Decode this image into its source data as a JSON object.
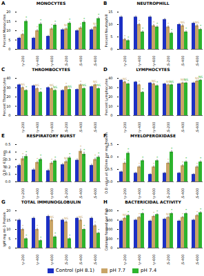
{
  "chart_data": [
    {
      "type": "bar",
      "panel": "A",
      "title": "MONOCYTES",
      "ylabel": "Percent Monocytes",
      "categories": [
        "Fry-200",
        "Fry-400",
        "Fry-600",
        "FLS-200",
        "FLS-400",
        "FLS-600"
      ],
      "series": [
        {
          "name": "Control (pH 8.1)",
          "color": "#1c2fc4",
          "values": [
            6,
            6,
            7,
            10.5,
            10,
            10.5
          ],
          "errors": [
            0.6,
            0.6,
            0.6,
            0.7,
            0.7,
            0.7
          ]
        },
        {
          "name": "pH 7.7",
          "color": "#c9a467",
          "values": [
            8,
            10,
            11,
            11,
            11.5,
            12
          ],
          "errors": [
            0.6,
            0.7,
            0.7,
            0.7,
            0.7,
            0.7
          ],
          "annotations": [
            "*",
            "*",
            "*",
            "NS",
            "*",
            "NS"
          ]
        },
        {
          "name": "pH 7.4",
          "color": "#2db42d",
          "values": [
            15,
            13.5,
            13,
            14,
            14.5,
            16.5
          ],
          "errors": [
            0.8,
            0.8,
            0.8,
            0.8,
            0.8,
            0.8
          ],
          "annotations": [
            "*",
            "*",
            "*",
            "*",
            "*",
            "*"
          ]
        }
      ],
      "ylim": [
        0,
        20
      ],
      "yticks": [
        0,
        5,
        10,
        15,
        20
      ]
    },
    {
      "type": "bar",
      "panel": "B",
      "title": "NEUTROPHILL",
      "ylabel": "Percent Neutrophill",
      "categories": [
        "Fry-200",
        "Fry-400",
        "Fry-600",
        "FLS-200",
        "FLS-400",
        "FLS-600"
      ],
      "series": [
        {
          "name": "Control (pH 8.1)",
          "color": "#1c2fc4",
          "values": [
            13,
            13,
            13,
            12,
            10,
            10.5
          ],
          "errors": [
            0.5,
            0.5,
            0.5,
            0.5,
            0.5,
            0.5
          ]
        },
        {
          "name": "pH 7.7",
          "color": "#c9a467",
          "values": [
            4,
            10,
            9.5,
            9,
            9.5,
            9.5
          ],
          "errors": [
            0.5,
            0.5,
            0.5,
            0.5,
            0.5,
            0.5
          ],
          "annotations": [
            "*",
            "*",
            "*",
            "*",
            "NS",
            "NS"
          ]
        },
        {
          "name": "pH 7.4",
          "color": "#2db42d",
          "values": [
            3.5,
            7,
            9,
            6.5,
            7,
            8
          ],
          "errors": [
            0.5,
            0.5,
            0.5,
            0.5,
            0.5,
            0.5
          ],
          "annotations": [
            "*",
            "*",
            "*",
            "*",
            "*",
            "*"
          ]
        }
      ],
      "ylim": [
        0,
        15
      ],
      "yticks": [
        0,
        5,
        10,
        15
      ]
    },
    {
      "type": "bar",
      "panel": "C",
      "title": "THROMBOCYTES",
      "ylabel": "Percent Thrombocytes",
      "categories": [
        "Fry-200",
        "Fry-400",
        "Fry-600",
        "FLS-200",
        "FLS-400",
        "FLS-600"
      ],
      "series": [
        {
          "name": "Control (pH 8.1)",
          "color": "#1c2fc4",
          "values": [
            33,
            32,
            30,
            27,
            28,
            31
          ],
          "errors": [
            1,
            1,
            1,
            1,
            1,
            1
          ]
        },
        {
          "name": "pH 7.7",
          "color": "#c9a467",
          "values": [
            30,
            29,
            29,
            31,
            33,
            33
          ],
          "errors": [
            1,
            1,
            1,
            1,
            1,
            1
          ],
          "annotations": [
            "NS",
            "NS",
            "NS",
            "*",
            "*",
            "NS"
          ]
        },
        {
          "name": "pH 7.4",
          "color": "#2db42d",
          "values": [
            27,
            25,
            27,
            28,
            29,
            29
          ],
          "errors": [
            1,
            1,
            1,
            1,
            1,
            1
          ],
          "annotations": [
            "*",
            "*",
            "NS",
            "NS",
            "NS",
            "NS"
          ]
        }
      ],
      "ylim": [
        0,
        40
      ],
      "yticks": [
        0,
        10,
        20,
        30,
        40
      ]
    },
    {
      "type": "bar",
      "panel": "D",
      "title": "LYMPHOCYTES",
      "ylabel": "Percent Lymphocytes",
      "categories": [
        "Fry-200",
        "Fry-400",
        "Fry-600",
        "FLS-200",
        "FLS-400",
        "FLS-600"
      ],
      "series": [
        {
          "name": "Control (pH 8.1)",
          "color": "#1c2fc4",
          "values": [
            38,
            36,
            35,
            34,
            34,
            35
          ],
          "errors": [
            1,
            1,
            1,
            1,
            1,
            1
          ]
        },
        {
          "name": "pH 7.7",
          "color": "#c9a467",
          "values": [
            36,
            33,
            34,
            33,
            35,
            37
          ],
          "errors": [
            1,
            1,
            1,
            1,
            1,
            1
          ],
          "annotations": [
            "NS",
            "*",
            "NS",
            "NS",
            "NS",
            "NS"
          ]
        },
        {
          "name": "pH 7.4",
          "color": "#2db42d",
          "values": [
            34,
            25,
            32,
            33,
            35,
            38
          ],
          "errors": [
            1,
            1,
            1,
            1,
            1,
            1
          ],
          "annotations": [
            "*",
            "*",
            "*",
            "NS",
            "NS",
            "NS"
          ]
        }
      ],
      "ylim": [
        0,
        40
      ],
      "yticks": [
        0,
        10,
        20,
        30,
        40
      ]
    },
    {
      "type": "bar",
      "panel": "E",
      "title": "RESPIRATORY BURST",
      "ylabel": "O.D at 630 nm",
      "categories": [
        "Fry-200",
        "Fry-400",
        "Fry-600",
        "FLS-200",
        "FLS-400",
        "FLS-600"
      ],
      "series": [
        {
          "name": "Control (pH 8.1)",
          "color": "#1c2fc4",
          "values": [
            0.22,
            0.16,
            0.15,
            0.23,
            0.29,
            0.22
          ],
          "errors": [
            0.02,
            0.02,
            0.02,
            0.02,
            0.02,
            0.02
          ]
        },
        {
          "name": "pH 7.7",
          "color": "#c9a467",
          "values": [
            0.31,
            0.26,
            0.25,
            0.27,
            0.41,
            0.3
          ],
          "errors": [
            0.03,
            0.02,
            0.02,
            0.02,
            0.03,
            0.02
          ],
          "annotations": [
            "*",
            "*",
            "*",
            "NS",
            "*",
            "*"
          ]
        },
        {
          "name": "pH 7.4",
          "color": "#2db42d",
          "values": [
            0.34,
            0.3,
            0.28,
            0.32,
            0.37,
            0.33
          ],
          "errors": [
            0.03,
            0.02,
            0.02,
            0.02,
            0.03,
            0.02
          ],
          "annotations": [
            "*",
            "*",
            "*",
            "*",
            "*",
            "*"
          ]
        }
      ],
      "ylim": [
        0,
        0.5
      ],
      "yticks": [
        {
          "value": 0,
          "label": "0.0"
        },
        0.1,
        0.2,
        0.3,
        0.4,
        0.5
      ]
    },
    {
      "type": "bar",
      "panel": "F",
      "title": "MYELOPEROXIDASE",
      "ylabel": "O.D value at 450nm per mg Protein",
      "categories": [
        "Fry-200",
        "Fry-400",
        "Fry-600",
        "FLS-200",
        "FLS-400",
        "FLS-600"
      ],
      "series": [
        {
          "name": "Control (pH 8.1)",
          "color": "#1c2fc4",
          "values": [
            0.4,
            0.35,
            0.3,
            0.35,
            0.35,
            0.3
          ],
          "errors": [
            0.04,
            0.04,
            0.04,
            0.04,
            0.04,
            0.04
          ]
        },
        {
          "name": "pH 7.7",
          "color": "#c9a467",
          "values": [
            0.75,
            0.6,
            0.6,
            0.75,
            0.65,
            0.6
          ],
          "errors": [
            0.05,
            0.05,
            0.05,
            0.05,
            0.05,
            0.05
          ],
          "annotations": [
            "*",
            "*",
            "*",
            "*",
            "*",
            "*"
          ]
        },
        {
          "name": "pH 7.4",
          "color": "#2db42d",
          "values": [
            1.15,
            0.85,
            0.85,
            1.2,
            0.8,
            0.8
          ],
          "errors": [
            0.06,
            0.05,
            0.05,
            0.06,
            0.05,
            0.05
          ],
          "annotations": [
            "*",
            "*",
            "*",
            "*",
            "*",
            "*"
          ]
        }
      ],
      "ylim": [
        0,
        1.5
      ],
      "yticks": [
        {
          "value": 0,
          "label": "0.0"
        },
        0.5,
        {
          "value": 1,
          "label": "1.0"
        },
        1.5
      ]
    },
    {
      "type": "bar",
      "panel": "G",
      "title": "TOTAL IMMUNOGLOBULIN",
      "ylabel": "IgM mg ml-1 Protein",
      "categories": [
        "Fry-200",
        "Fry-400",
        "Fry-600",
        "FLS-200",
        "FLS-400",
        "FLS-600"
      ],
      "series": [
        {
          "name": "Control (pH 8.1)",
          "color": "#1c2fc4",
          "values": [
            15,
            16,
            17,
            15,
            16,
            16
          ],
          "errors": [
            0.7,
            0.7,
            0.7,
            0.7,
            0.7,
            0.7
          ]
        },
        {
          "name": "pH 7.7",
          "color": "#c9a467",
          "values": [
            10,
            10,
            15,
            14,
            15,
            12
          ],
          "errors": [
            0.7,
            0.7,
            0.7,
            0.7,
            0.7,
            0.7
          ],
          "annotations": [
            "*",
            "*",
            "NS",
            "NS",
            "NS",
            "*"
          ]
        },
        {
          "name": "pH 7.4",
          "color": "#2db42d",
          "values": [
            5,
            4,
            6,
            5,
            10,
            8
          ],
          "errors": [
            0.6,
            0.6,
            0.6,
            0.6,
            0.6,
            0.6
          ],
          "annotations": [
            "*",
            "*",
            "*",
            "*",
            "*",
            "*"
          ]
        }
      ],
      "ylim": [
        0,
        20
      ],
      "yticks": [
        0,
        5,
        10,
        15,
        20
      ]
    },
    {
      "type": "bar",
      "panel": "H",
      "title": "BACTERICIDAL ACTIVITY",
      "ylabel": "Colonies formed per Fish",
      "categories": [
        "Fry-200",
        "Fry-400",
        "Fry-600",
        "FLS-200",
        "FLS-400",
        "FLS-600"
      ],
      "series": [
        {
          "name": "Control (pH 8.1)",
          "color": "#1c2fc4",
          "values": [
            290,
            300,
            290,
            310,
            290,
            300
          ],
          "errors": [
            12,
            12,
            12,
            12,
            12,
            12
          ]
        },
        {
          "name": "pH 7.7",
          "color": "#c9a467",
          "values": [
            320,
            330,
            340,
            330,
            330,
            350
          ],
          "errors": [
            12,
            12,
            12,
            12,
            12,
            12
          ],
          "annotations": [
            "NS",
            "*",
            "*",
            "NS",
            "*",
            "*"
          ]
        },
        {
          "name": "pH 7.4",
          "color": "#2db42d",
          "values": [
            350,
            370,
            360,
            370,
            370,
            380
          ],
          "errors": [
            12,
            12,
            12,
            12,
            12,
            12
          ],
          "annotations": [
            "*",
            "*",
            "*",
            "*",
            "*",
            "*"
          ]
        }
      ],
      "ylim": [
        0,
        400
      ],
      "yticks": [
        0,
        100,
        200,
        300,
        400
      ],
      "legend": "bottom"
    }
  ]
}
